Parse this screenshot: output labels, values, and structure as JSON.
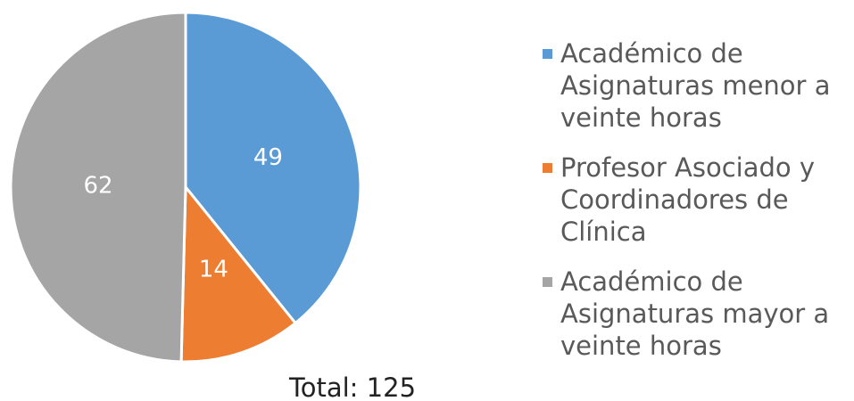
{
  "chart_data": {
    "type": "pie",
    "categories": [
      "Académico de Asignaturas menor a veinte horas",
      "Profesor Asociado y Coordinadores de Clínica",
      "Académico de Asignaturas mayor a veinte horas"
    ],
    "values": [
      49,
      14,
      62
    ],
    "colors": [
      "#5b9bd5",
      "#ed7d31",
      "#a5a5a5"
    ],
    "annotation": "Total: 125",
    "legend": "right"
  }
}
